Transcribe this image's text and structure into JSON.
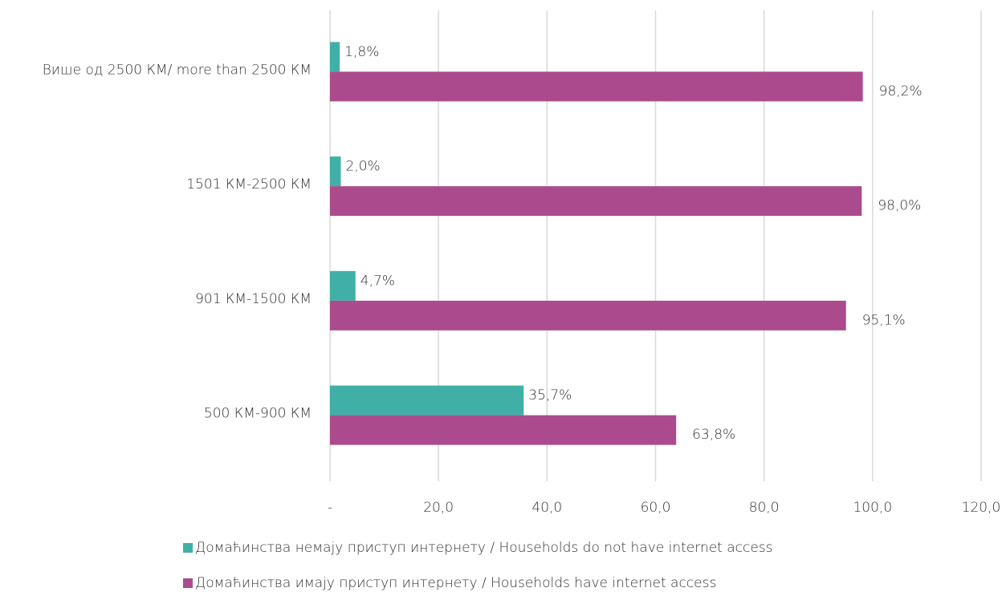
{
  "chart_data": {
    "type": "bar",
    "orientation": "horizontal",
    "categories": [
      "Више од 2500 КМ/ more than 2500 КМ",
      "1501 КМ-2500 КМ",
      "901 КМ-1500 КМ",
      "500 КМ-900 КМ"
    ],
    "series": [
      {
        "name": "Домаћинства немају приступ интернету / Households do not have internet access",
        "color": "#40b0a6",
        "values": [
          1.8,
          2.0,
          4.7,
          35.7
        ],
        "value_labels": [
          "1,8%",
          "2,0%",
          "4,7%",
          "35,7%"
        ]
      },
      {
        "name": "Домаћинства имају приступ интернету / Households have internet access",
        "color": "#ab4b8e",
        "values": [
          98.2,
          98.0,
          95.1,
          63.8
        ],
        "value_labels": [
          "98,2%",
          "98,0%",
          "95,1%",
          "63,8%"
        ]
      }
    ],
    "xlim": [
      0,
      120
    ],
    "xticks": [
      {
        "value": 0,
        "label": "-"
      },
      {
        "value": 20,
        "label": "20,0"
      },
      {
        "value": 40,
        "label": "40,0"
      },
      {
        "value": 60,
        "label": "60,0"
      },
      {
        "value": 80,
        "label": "80,0"
      },
      {
        "value": 100,
        "label": "100,0"
      },
      {
        "value": 120,
        "label": "120,0"
      }
    ],
    "grid": true,
    "legend": "bottom"
  }
}
